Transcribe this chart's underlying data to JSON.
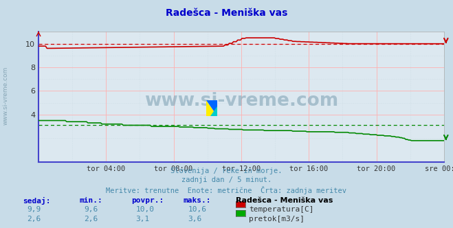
{
  "title": "Radešca - Meniška vas",
  "bg_color": "#c8dce8",
  "plot_bg_color": "#dce8f0",
  "grid_color_h": "#ffb0b0",
  "grid_color_v": "#ffb0b0",
  "grid_minor_color": "#c8d8e0",
  "xlabel_ticks": [
    "tor 04:00",
    "tor 08:00",
    "tor 12:00",
    "tor 16:00",
    "tor 20:00",
    "sre 00:00"
  ],
  "yticks": [
    4,
    6,
    8,
    10
  ],
  "ylim": [
    0,
    11
  ],
  "watermark": "www.si-vreme.com",
  "subtitle1": "Slovenija / reke in morje.",
  "subtitle2": "zadnji dan / 5 minut.",
  "subtitle3": "Meritve: trenutne  Enote: metrične  Črta: zadnja meritev",
  "legend_title": "Radešca - Meniška vas",
  "legend_items": [
    "temperatura[C]",
    "pretok[m3/s]"
  ],
  "legend_colors": [
    "#cc0000",
    "#00aa00"
  ],
  "table_headers": [
    "sedaj:",
    "min.:",
    "povpr.:",
    "maks.:"
  ],
  "table_row1": [
    "9,9",
    "9,6",
    "10,0",
    "10,6"
  ],
  "table_row2": [
    "2,6",
    "2,6",
    "3,1",
    "3,6"
  ],
  "avg_temp": 10.0,
  "avg_flow": 3.1,
  "temp_color": "#cc0000",
  "flow_color": "#008800",
  "left_border_color": "#4444cc",
  "bottom_border_color": "#4444cc",
  "n_points": 288,
  "title_color": "#0000cc",
  "subtitle_color": "#4488aa",
  "table_header_color": "#0000cc",
  "table_value_color": "#4488aa",
  "watermark_color": "#8aaabb"
}
